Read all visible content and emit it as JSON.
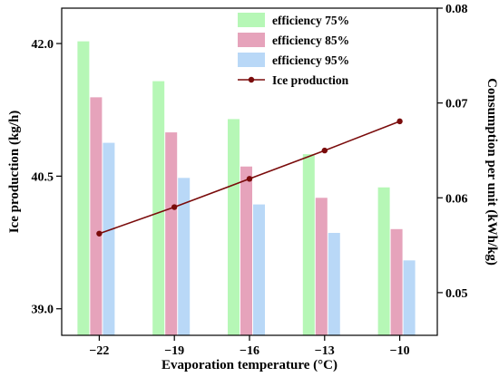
{
  "chart_data": {
    "type": "bar",
    "xlabel": "Evaporation temperature (°C)",
    "ylabel_left": "Ice production (kg/h)",
    "ylabel_right": "Consumption per unit (kWh/kg)",
    "categories": [
      "−22",
      "−19",
      "−16",
      "−13",
      "−10"
    ],
    "y_left": {
      "ylim": [
        38.7,
        42.4
      ],
      "ticks": [
        39.0,
        40.5,
        42.0
      ],
      "tick_labels": [
        "39.0",
        "40.5",
        "42.0"
      ]
    },
    "y_right": {
      "ylim": [
        0.0455,
        0.08
      ],
      "ticks": [
        0.05,
        0.06,
        0.07,
        0.08
      ],
      "tick_labels": [
        "0.05",
        "0.06",
        "0.07",
        "0.08"
      ]
    },
    "series": [
      {
        "name": "efficiency 75%",
        "type": "bar",
        "axis": "right",
        "color": "#b6f7b6",
        "values": [
          0.0765,
          0.0723,
          0.0683,
          0.0646,
          0.0611
        ]
      },
      {
        "name": "efficiency 85%",
        "type": "bar",
        "axis": "right",
        "color": "#e6a3bb",
        "values": [
          0.0706,
          0.0669,
          0.0633,
          0.06,
          0.0567
        ]
      },
      {
        "name": "efficiency 95%",
        "type": "bar",
        "axis": "right",
        "color": "#b9d8f7",
        "values": [
          0.0658,
          0.0621,
          0.0593,
          0.0563,
          0.0534
        ]
      },
      {
        "name": "Ice production",
        "type": "line",
        "axis": "left",
        "color": "#7a0b0b",
        "values": [
          39.85,
          40.15,
          40.47,
          40.79,
          41.12
        ]
      }
    ],
    "legend_position": "top-right",
    "grid": false
  }
}
